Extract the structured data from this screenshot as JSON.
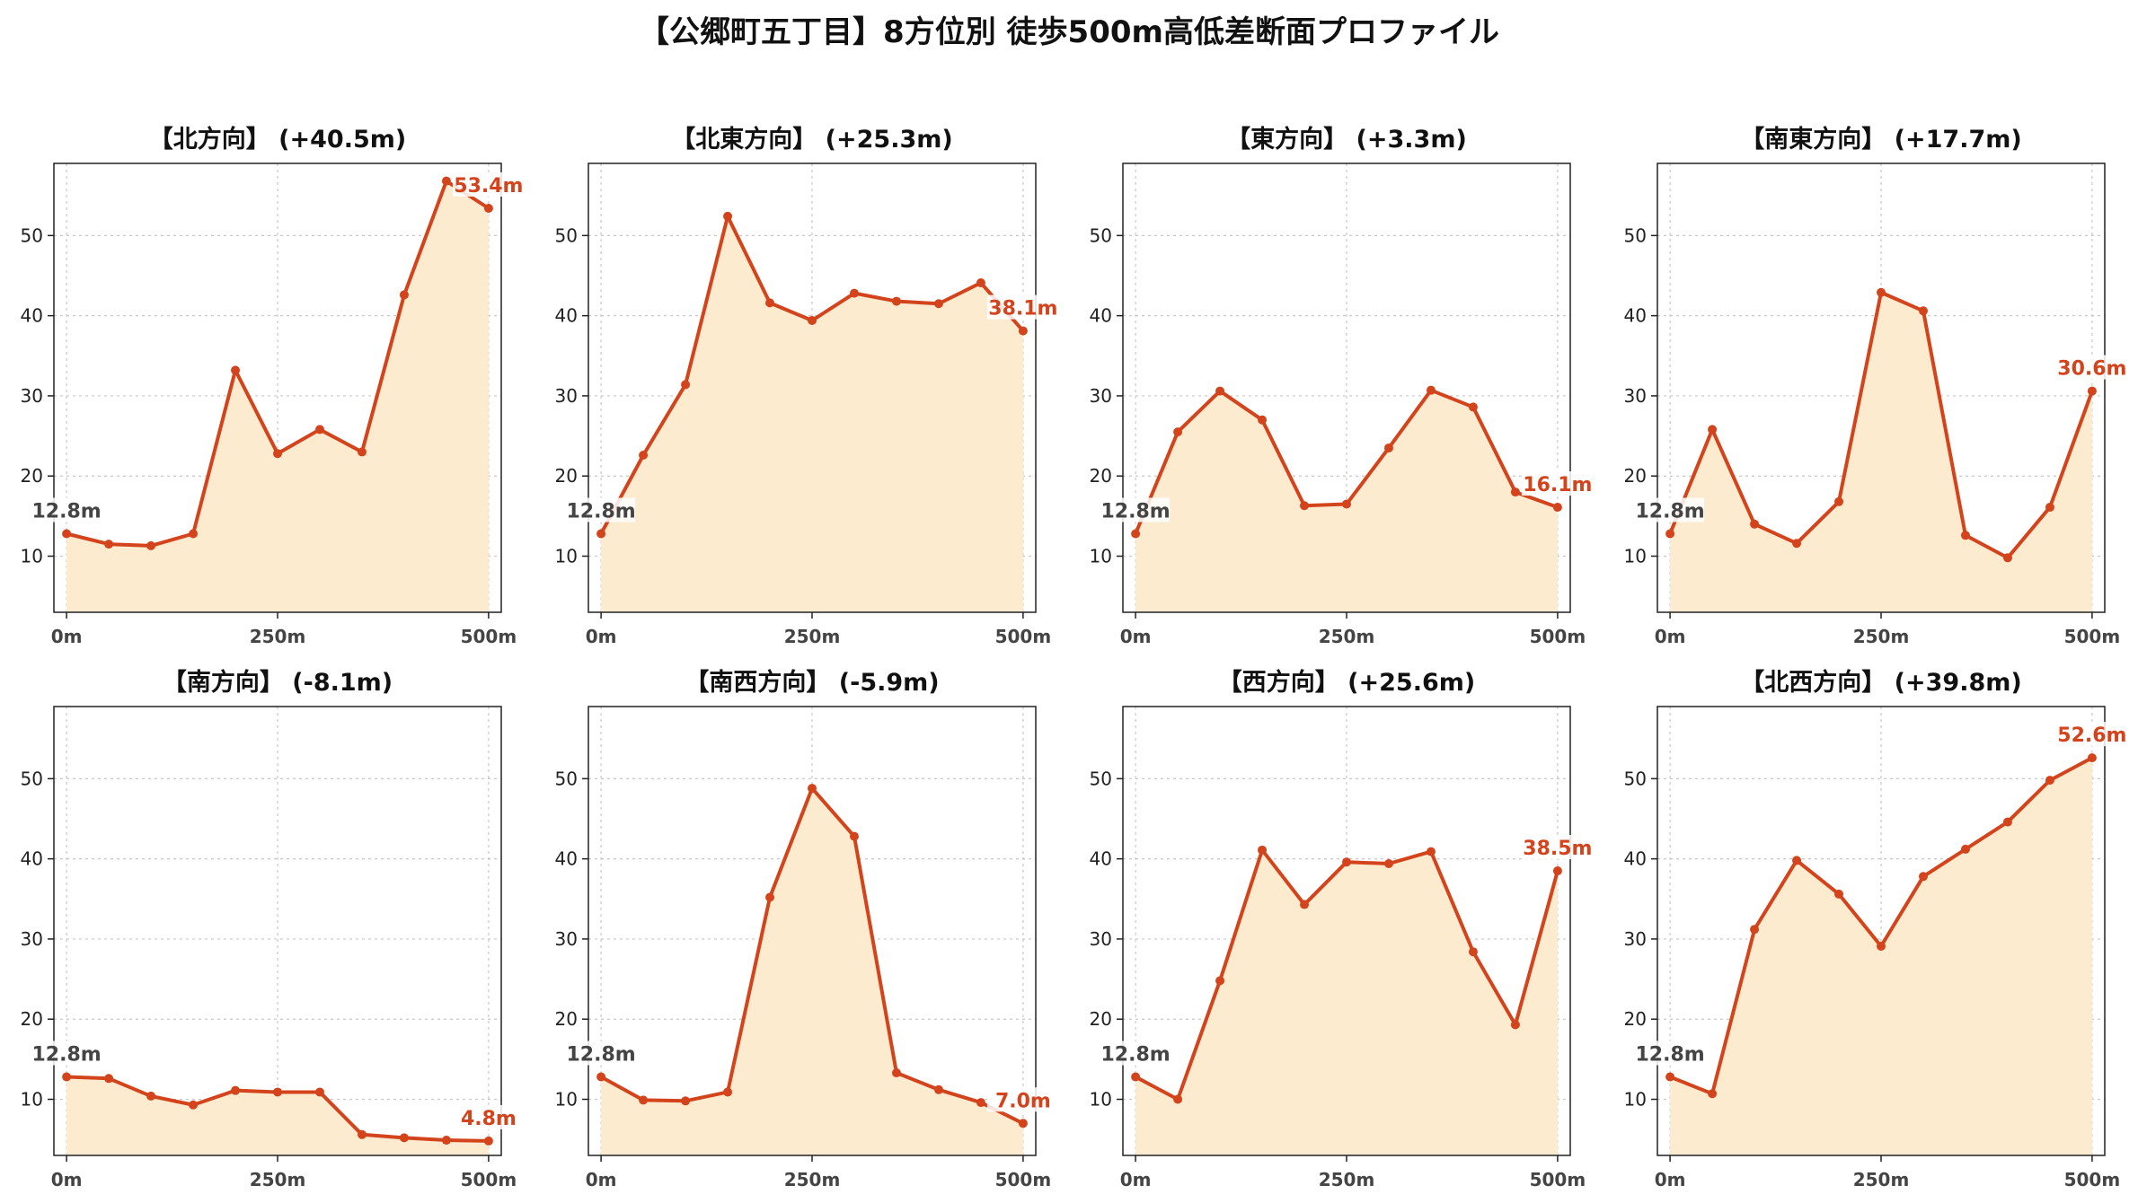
{
  "title": "【公郷町五丁目】8方位別 徒歩500m高低差断面プロファイル",
  "colors": {
    "line": "#D4441C",
    "fill": "#FDEBD0",
    "grid": "#C8C8C8"
  },
  "chart_data": {
    "type": "area",
    "ylim": [
      3,
      59
    ],
    "xlim": [
      -15,
      515
    ],
    "yticks": [
      10,
      20,
      30,
      40,
      50
    ],
    "xticks": [
      0,
      250,
      500
    ],
    "xtick_labels": [
      "0m",
      "250m",
      "500m"
    ],
    "grid": true,
    "x": [
      0,
      50,
      100,
      150,
      200,
      250,
      300,
      350,
      400,
      450,
      500
    ],
    "panels": [
      {
        "title": "【北方向】 (+40.5m)",
        "values": [
          12.8,
          11.5,
          11.3,
          12.8,
          33.2,
          22.8,
          25.8,
          23.0,
          42.6,
          56.8,
          53.4
        ],
        "start_label": "12.8m",
        "end_label": "53.4m"
      },
      {
        "title": "【北東方向】 (+25.3m)",
        "values": [
          12.8,
          22.6,
          31.4,
          52.4,
          41.6,
          39.4,
          42.8,
          41.8,
          41.5,
          44.1,
          38.1
        ],
        "start_label": "12.8m",
        "end_label": "38.1m"
      },
      {
        "title": "【東方向】 (+3.3m)",
        "values": [
          12.8,
          25.5,
          30.6,
          27.0,
          16.3,
          16.5,
          23.5,
          30.7,
          28.6,
          18.0,
          16.1
        ],
        "start_label": "12.8m",
        "end_label": "16.1m"
      },
      {
        "title": "【南東方向】 (+17.7m)",
        "values": [
          12.8,
          25.8,
          14.0,
          11.6,
          16.8,
          42.9,
          40.6,
          12.6,
          9.8,
          16.1,
          30.6
        ],
        "start_label": "12.8m",
        "end_label": "30.6m"
      },
      {
        "title": "【南方向】 (-8.1m)",
        "values": [
          12.8,
          12.6,
          10.4,
          9.3,
          11.1,
          10.9,
          10.9,
          5.6,
          5.2,
          4.9,
          4.8
        ],
        "start_label": "12.8m",
        "end_label": "4.8m"
      },
      {
        "title": "【南西方向】 (-5.9m)",
        "values": [
          12.8,
          9.9,
          9.8,
          10.9,
          35.2,
          48.8,
          42.8,
          13.3,
          11.2,
          9.6,
          7.0
        ],
        "start_label": "12.8m",
        "end_label": "7.0m"
      },
      {
        "title": "【西方向】 (+25.6m)",
        "values": [
          12.8,
          10.0,
          24.8,
          41.1,
          34.3,
          39.6,
          39.4,
          40.9,
          28.4,
          19.3,
          38.5
        ],
        "start_label": "12.8m",
        "end_label": "38.5m"
      },
      {
        "title": "【北西方向】 (+39.8m)",
        "values": [
          12.8,
          10.7,
          31.2,
          39.8,
          35.6,
          29.1,
          37.8,
          41.2,
          44.6,
          49.8,
          52.6
        ],
        "start_label": "12.8m",
        "end_label": "52.6m"
      }
    ]
  }
}
